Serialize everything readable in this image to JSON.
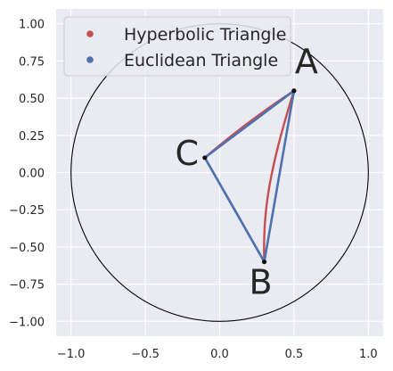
{
  "chart_data": {
    "type": "line",
    "title": "",
    "xlabel": "",
    "ylabel": "",
    "xlim": [
      -1.1,
      1.1
    ],
    "ylim": [
      -1.1,
      1.1
    ],
    "grid": true,
    "x_ticks": [
      -1.0,
      -0.5,
      0.0,
      0.5,
      1.0
    ],
    "x_tick_labels": [
      "−1.0",
      "−0.5",
      "0.0",
      "0.5",
      "1.0"
    ],
    "y_ticks": [
      1.0,
      0.75,
      0.5,
      0.25,
      0.0,
      -0.25,
      -0.5,
      -0.75,
      -1.0
    ],
    "y_tick_labels": [
      "1.00",
      "0.75",
      "0.50",
      "0.25",
      "0.00",
      "−0.25",
      "−0.50",
      "−0.75",
      "−1.00"
    ],
    "legend_position": "top-left",
    "unit_circle": {
      "center": [
        0,
        0
      ],
      "radius": 1
    },
    "vertices": [
      {
        "label": "A",
        "x": 0.5,
        "y": 0.55
      },
      {
        "label": "B",
        "x": 0.3,
        "y": -0.6
      },
      {
        "label": "C",
        "x": -0.1,
        "y": 0.1
      }
    ],
    "series": [
      {
        "name": "Hyperbolic Triangle",
        "color": "#c44e52",
        "edges": [
          [
            [
              0.5,
              0.55
            ],
            [
              0.3,
              0.42
            ],
            [
              0.1,
              0.27
            ],
            [
              -0.1,
              0.1
            ]
          ],
          [
            [
              -0.1,
              0.1
            ],
            [
              0.05,
              -0.16
            ],
            [
              0.2,
              -0.42
            ],
            [
              0.3,
              -0.6
            ]
          ],
          [
            [
              0.3,
              -0.6
            ],
            [
              0.29,
              -0.3
            ],
            [
              0.32,
              -0.02
            ],
            [
              0.5,
              0.55
            ]
          ]
        ]
      },
      {
        "name": "Euclidean Triangle",
        "color": "#4c72b0",
        "edges": [
          [
            [
              0.5,
              0.55
            ],
            [
              -0.1,
              0.1
            ]
          ],
          [
            [
              -0.1,
              0.1
            ],
            [
              0.3,
              -0.6
            ]
          ],
          [
            [
              0.3,
              -0.6
            ],
            [
              0.5,
              0.55
            ]
          ]
        ]
      }
    ]
  }
}
